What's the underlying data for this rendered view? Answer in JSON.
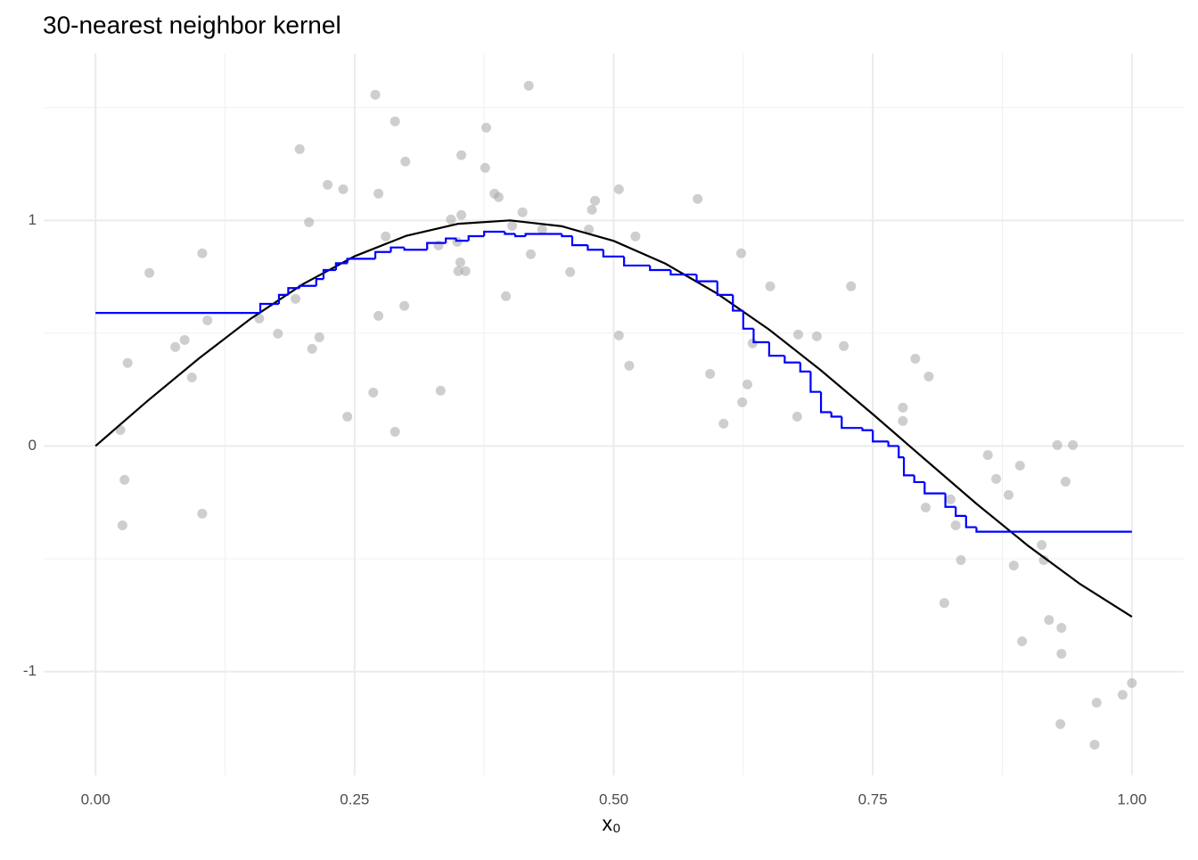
{
  "chart_data": {
    "type": "scatter",
    "title": "30-nearest neighbor kernel",
    "x_label": "x₀",
    "xlim": [
      -0.05,
      1.05
    ],
    "ylim": [
      -1.46,
      1.74
    ],
    "xticks": [
      {
        "value": 0,
        "label": "0.00"
      },
      {
        "value": 0.25,
        "label": "0.25"
      },
      {
        "value": 0.5,
        "label": "0.50"
      },
      {
        "value": 0.75,
        "label": "0.75"
      },
      {
        "value": 1,
        "label": "1.00"
      }
    ],
    "yticks": [
      -1,
      0,
      1
    ],
    "grid": true,
    "series": [
      {
        "type": "scatter",
        "color": "#a6a6a6",
        "x": [
          0.27,
          0.418,
          0.289,
          0.197,
          0.299,
          0.353,
          0.377,
          0.376,
          0.224,
          0.239,
          0.273,
          0.385,
          0.389,
          0.505,
          0.482,
          0.581,
          0.479,
          0.412,
          0.353,
          0.343,
          0.206,
          0.402,
          0.476,
          0.431,
          0.103,
          0.052,
          0.28,
          0.521,
          0.331,
          0.352,
          0.35,
          0.357,
          0.42,
          0.458,
          0.623,
          0.651,
          0.729,
          0.193,
          0.396,
          0.298,
          0.273,
          0.108,
          0.158,
          0.176,
          0.216,
          0.209,
          0.077,
          0.086,
          0.031,
          0.093,
          0.505,
          0.678,
          0.696,
          0.722,
          0.634,
          0.515,
          0.791,
          0.593,
          0.804,
          0.629,
          0.268,
          0.333,
          0.624,
          0.779,
          0.779,
          0.606,
          0.677,
          0.243,
          0.289,
          0.024,
          0.028,
          0.861,
          0.892,
          0.928,
          0.943,
          0.869,
          0.936,
          0.881,
          0.801,
          0.825,
          0.83,
          0.026,
          0.103,
          0.835,
          0.886,
          0.913,
          0.915,
          0.819,
          0.92,
          0.894,
          0.932,
          0.932,
          1.0,
          0.991,
          0.966,
          0.931,
          0.964,
          0.349
        ],
        "values": [
          1.557,
          1.597,
          1.439,
          1.316,
          1.261,
          1.289,
          1.411,
          1.233,
          1.158,
          1.138,
          1.119,
          1.119,
          1.103,
          1.138,
          1.087,
          1.095,
          1.047,
          1.036,
          1.024,
          1.004,
          0.992,
          0.976,
          0.96,
          0.96,
          0.854,
          0.767,
          0.929,
          0.929,
          0.889,
          0.814,
          0.775,
          0.775,
          0.85,
          0.771,
          0.854,
          0.708,
          0.708,
          0.652,
          0.664,
          0.621,
          0.577,
          0.557,
          0.565,
          0.498,
          0.482,
          0.431,
          0.439,
          0.47,
          0.368,
          0.304,
          0.49,
          0.494,
          0.486,
          0.443,
          0.455,
          0.356,
          0.387,
          0.32,
          0.308,
          0.273,
          0.237,
          0.245,
          0.194,
          0.17,
          0.111,
          0.099,
          0.13,
          0.13,
          0.063,
          0.071,
          -0.15,
          -0.04,
          -0.087,
          0.004,
          0.004,
          -0.146,
          -0.158,
          -0.217,
          -0.273,
          -0.237,
          -0.352,
          -0.352,
          -0.3,
          -0.506,
          -0.53,
          -0.439,
          -0.506,
          -0.696,
          -0.771,
          -0.866,
          -0.806,
          -0.921,
          -1.051,
          -1.103,
          -1.138,
          -1.233,
          -1.324,
          0.905
        ]
      },
      {
        "type": "line",
        "color": "#000000",
        "x": [
          0,
          0.05,
          0.1,
          0.15,
          0.2,
          0.25,
          0.3,
          0.35,
          0.4,
          0.45,
          0.5,
          0.55,
          0.6,
          0.65,
          0.7,
          0.75,
          0.8,
          0.85,
          0.9,
          0.95,
          1.0
        ],
        "values": [
          0,
          0.199,
          0.389,
          0.565,
          0.717,
          0.841,
          0.932,
          0.985,
          1.0,
          0.974,
          0.909,
          0.808,
          0.675,
          0.516,
          0.335,
          0.141,
          -0.058,
          -0.256,
          -0.443,
          -0.612,
          -0.757
        ]
      },
      {
        "type": "step",
        "color": "#0000ff",
        "x": [
          0,
          0.159,
          0.177,
          0.186,
          0.197,
          0.213,
          0.22,
          0.232,
          0.243,
          0.27,
          0.285,
          0.298,
          0.32,
          0.338,
          0.348,
          0.36,
          0.375,
          0.395,
          0.405,
          0.415,
          0.45,
          0.46,
          0.475,
          0.49,
          0.51,
          0.535,
          0.555,
          0.58,
          0.6,
          0.615,
          0.625,
          0.635,
          0.65,
          0.665,
          0.68,
          0.69,
          0.7,
          0.71,
          0.72,
          0.74,
          0.75,
          0.765,
          0.775,
          0.78,
          0.79,
          0.8,
          0.82,
          0.83,
          0.84,
          0.85,
          1.0
        ],
        "values": [
          0.59,
          0.63,
          0.67,
          0.7,
          0.71,
          0.74,
          0.78,
          0.81,
          0.83,
          0.86,
          0.88,
          0.87,
          0.9,
          0.92,
          0.91,
          0.93,
          0.95,
          0.94,
          0.93,
          0.94,
          0.93,
          0.89,
          0.87,
          0.84,
          0.8,
          0.78,
          0.76,
          0.73,
          0.67,
          0.6,
          0.52,
          0.46,
          0.4,
          0.37,
          0.33,
          0.24,
          0.15,
          0.13,
          0.08,
          0.07,
          0.02,
          0.0,
          -0.05,
          -0.13,
          -0.16,
          -0.21,
          -0.27,
          -0.31,
          -0.36,
          -0.38,
          -0.38
        ]
      }
    ]
  }
}
